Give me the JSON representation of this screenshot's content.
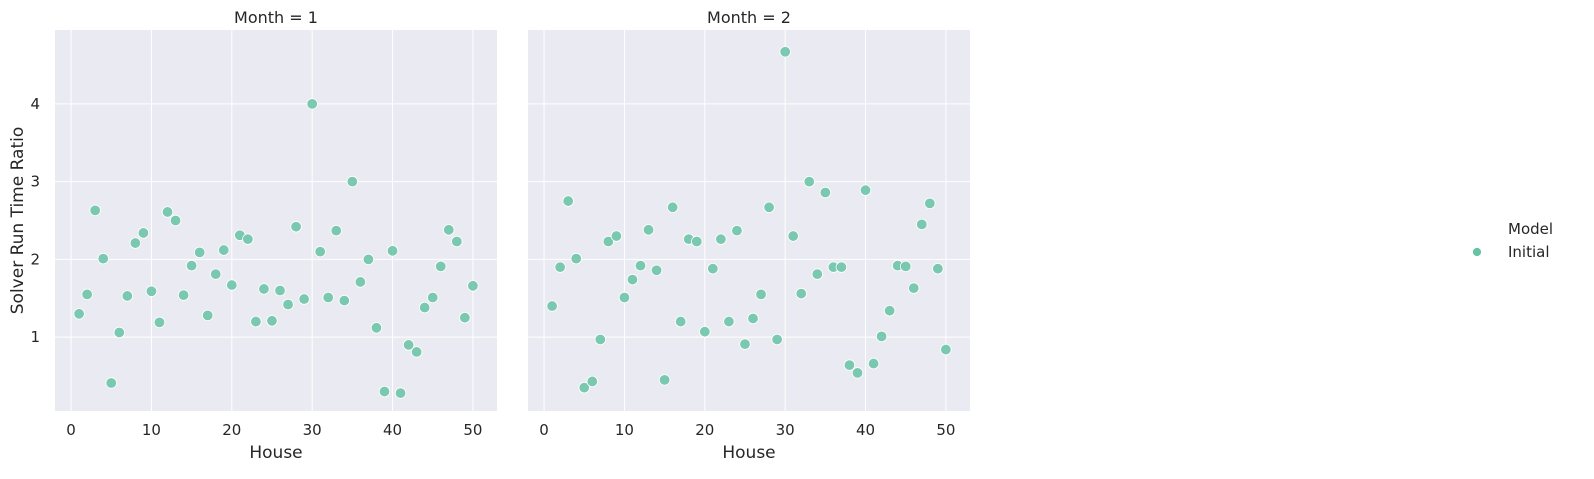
{
  "legend": {
    "title": "Model",
    "entries": [
      {
        "label": "Initial",
        "color": "#66c2a5"
      }
    ]
  },
  "colors": {
    "panel_background": "#eaeaf2",
    "grid": "#ffffff",
    "marker": "#66c2a5",
    "marker_edge": "#ffffff",
    "text": "#262626"
  },
  "chart_data": [
    {
      "type": "scatter",
      "title": "Month = 1",
      "xlabel": "House",
      "ylabel": "Solver Run Time Ratio",
      "xlim": [
        -2,
        53
      ],
      "ylim": [
        0.05,
        4.95
      ],
      "xticks": [
        0,
        10,
        20,
        30,
        40,
        50
      ],
      "yticks": [
        1,
        2,
        3,
        4
      ],
      "grid": true,
      "legend_position": "right",
      "series": [
        {
          "name": "Initial",
          "x": [
            1,
            2,
            3,
            4,
            5,
            6,
            7,
            8,
            9,
            10,
            11,
            12,
            13,
            14,
            15,
            16,
            17,
            18,
            19,
            20,
            21,
            22,
            23,
            24,
            25,
            26,
            27,
            28,
            29,
            30,
            31,
            32,
            33,
            34,
            35,
            36,
            37,
            38,
            39,
            40,
            41,
            42,
            43,
            44,
            45,
            46,
            47,
            48,
            49,
            50
          ],
          "y": [
            1.3,
            1.55,
            2.63,
            2.01,
            0.41,
            1.06,
            1.53,
            2.21,
            2.34,
            1.59,
            1.19,
            2.61,
            2.5,
            1.54,
            1.92,
            2.09,
            1.28,
            1.81,
            2.12,
            1.67,
            2.31,
            2.26,
            1.2,
            1.62,
            1.21,
            1.6,
            1.42,
            2.42,
            1.49,
            4.0,
            2.1,
            1.51,
            2.37,
            1.47,
            3.0,
            1.71,
            2.0,
            1.12,
            0.3,
            2.11,
            0.28,
            0.9,
            0.81,
            1.38,
            1.51,
            1.91,
            2.38,
            2.23,
            1.25,
            1.66
          ]
        }
      ]
    },
    {
      "type": "scatter",
      "title": "Month = 2",
      "xlabel": "House",
      "ylabel": "",
      "xlim": [
        -2,
        53
      ],
      "ylim": [
        0.05,
        4.95
      ],
      "xticks": [
        0,
        10,
        20,
        30,
        40,
        50
      ],
      "yticks": [
        1,
        2,
        3,
        4
      ],
      "grid": true,
      "legend_position": "right",
      "series": [
        {
          "name": "Initial",
          "x": [
            1,
            2,
            3,
            4,
            5,
            6,
            7,
            8,
            9,
            10,
            11,
            12,
            13,
            14,
            15,
            16,
            17,
            18,
            19,
            20,
            21,
            22,
            23,
            24,
            25,
            26,
            27,
            28,
            29,
            30,
            31,
            32,
            33,
            34,
            35,
            36,
            37,
            38,
            39,
            40,
            41,
            42,
            43,
            44,
            45,
            46,
            47,
            48,
            49,
            50
          ],
          "y": [
            1.4,
            1.9,
            2.75,
            2.01,
            0.35,
            0.43,
            0.97,
            2.23,
            2.3,
            1.51,
            1.74,
            1.92,
            2.38,
            1.86,
            0.45,
            2.67,
            1.2,
            2.26,
            2.23,
            1.07,
            1.88,
            2.26,
            1.2,
            2.37,
            0.91,
            1.24,
            1.55,
            2.67,
            0.97,
            4.67,
            2.3,
            1.56,
            3.0,
            1.81,
            2.86,
            1.9,
            1.9,
            0.64,
            0.54,
            2.89,
            0.66,
            1.01,
            1.34,
            1.92,
            1.91,
            1.63,
            2.45,
            2.72,
            1.88,
            0.84
          ]
        }
      ]
    }
  ]
}
